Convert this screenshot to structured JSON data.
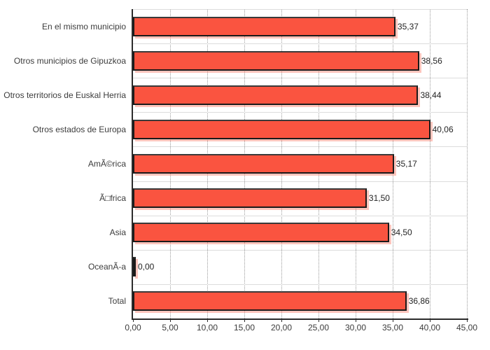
{
  "chart_data": {
    "type": "bar",
    "orientation": "horizontal",
    "title": "",
    "categories": [
      "En el mismo municipio",
      "Otros municipios de Gipuzkoa",
      "Otros territorios de Euskal Herria",
      "Otros estados de Europa",
      "AmÃ©rica",
      "Ã□frica",
      "Asia",
      "OceanÃ-a",
      "Total"
    ],
    "values": [
      35.37,
      38.56,
      38.44,
      40.06,
      35.17,
      31.5,
      34.5,
      0.0,
      36.86
    ],
    "value_labels": [
      "35,37",
      "38,56",
      "38,44",
      "40,06",
      "35,17",
      "31,50",
      "34,50",
      "0,00",
      "36,86"
    ],
    "x_ticks": [
      "0,00",
      "5,00",
      "10,00",
      "15,00",
      "20,00",
      "25,00",
      "30,00",
      "35,00",
      "40,00",
      "45,00"
    ],
    "xlim": [
      0,
      45
    ],
    "x_tick_step": 5,
    "grid": true,
    "legend": false,
    "colors": {
      "bar_fill": "#fa5440",
      "bar_border": "#1a1a1a",
      "bar_border_top": "#3a3a3a",
      "bar_shadow": "rgba(250,110,90,0.40)",
      "grid_dotted": "#9a9a9a",
      "grid_horizontal": "#dcdcdc",
      "axis": "#2b2b2b",
      "background": "#ffffff",
      "text": "#3c3c3c"
    }
  }
}
